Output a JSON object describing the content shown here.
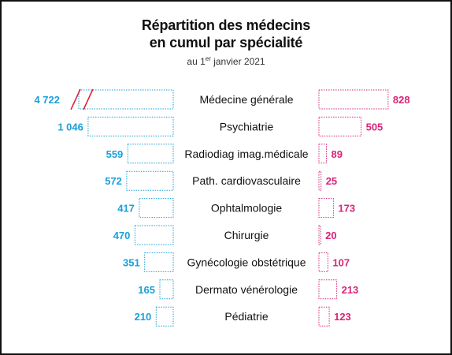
{
  "title_line1": "Répartition des médecins",
  "title_line2": "en cumul par spécialité",
  "subtitle_pre": "au 1",
  "subtitle_sup": "er",
  "subtitle_post": " janvier 2021",
  "colors": {
    "left": "#1aa0d8",
    "right": "#d8247a",
    "break_mark": "#e0223a",
    "text": "#111111"
  },
  "chart_data": {
    "type": "bar",
    "orientation": "horizontal-butterfly",
    "categories": [
      "Médecine générale",
      "Psychiatrie",
      "Radiodiag imag.médicale",
      "Path. cardiovasculaire",
      "Ophtalmologie",
      "Chirurgie",
      "Gynécologie obstétrique",
      "Dermato vénérologie",
      "Pédiatrie"
    ],
    "series": [
      {
        "values": [
          4722,
          1046,
          559,
          572,
          417,
          470,
          351,
          165,
          210
        ]
      },
      {
        "values": [
          828,
          505,
          89,
          25,
          173,
          20,
          107,
          213,
          123
        ]
      }
    ],
    "value_labels_left": [
      "4 722",
      "1 046",
      "559",
      "572",
      "417",
      "470",
      "351",
      "165",
      "210"
    ],
    "value_labels_right": [
      "828",
      "505",
      "89",
      "25",
      "173",
      "20",
      "107",
      "213",
      "123"
    ],
    "left_axis_break": true
  }
}
